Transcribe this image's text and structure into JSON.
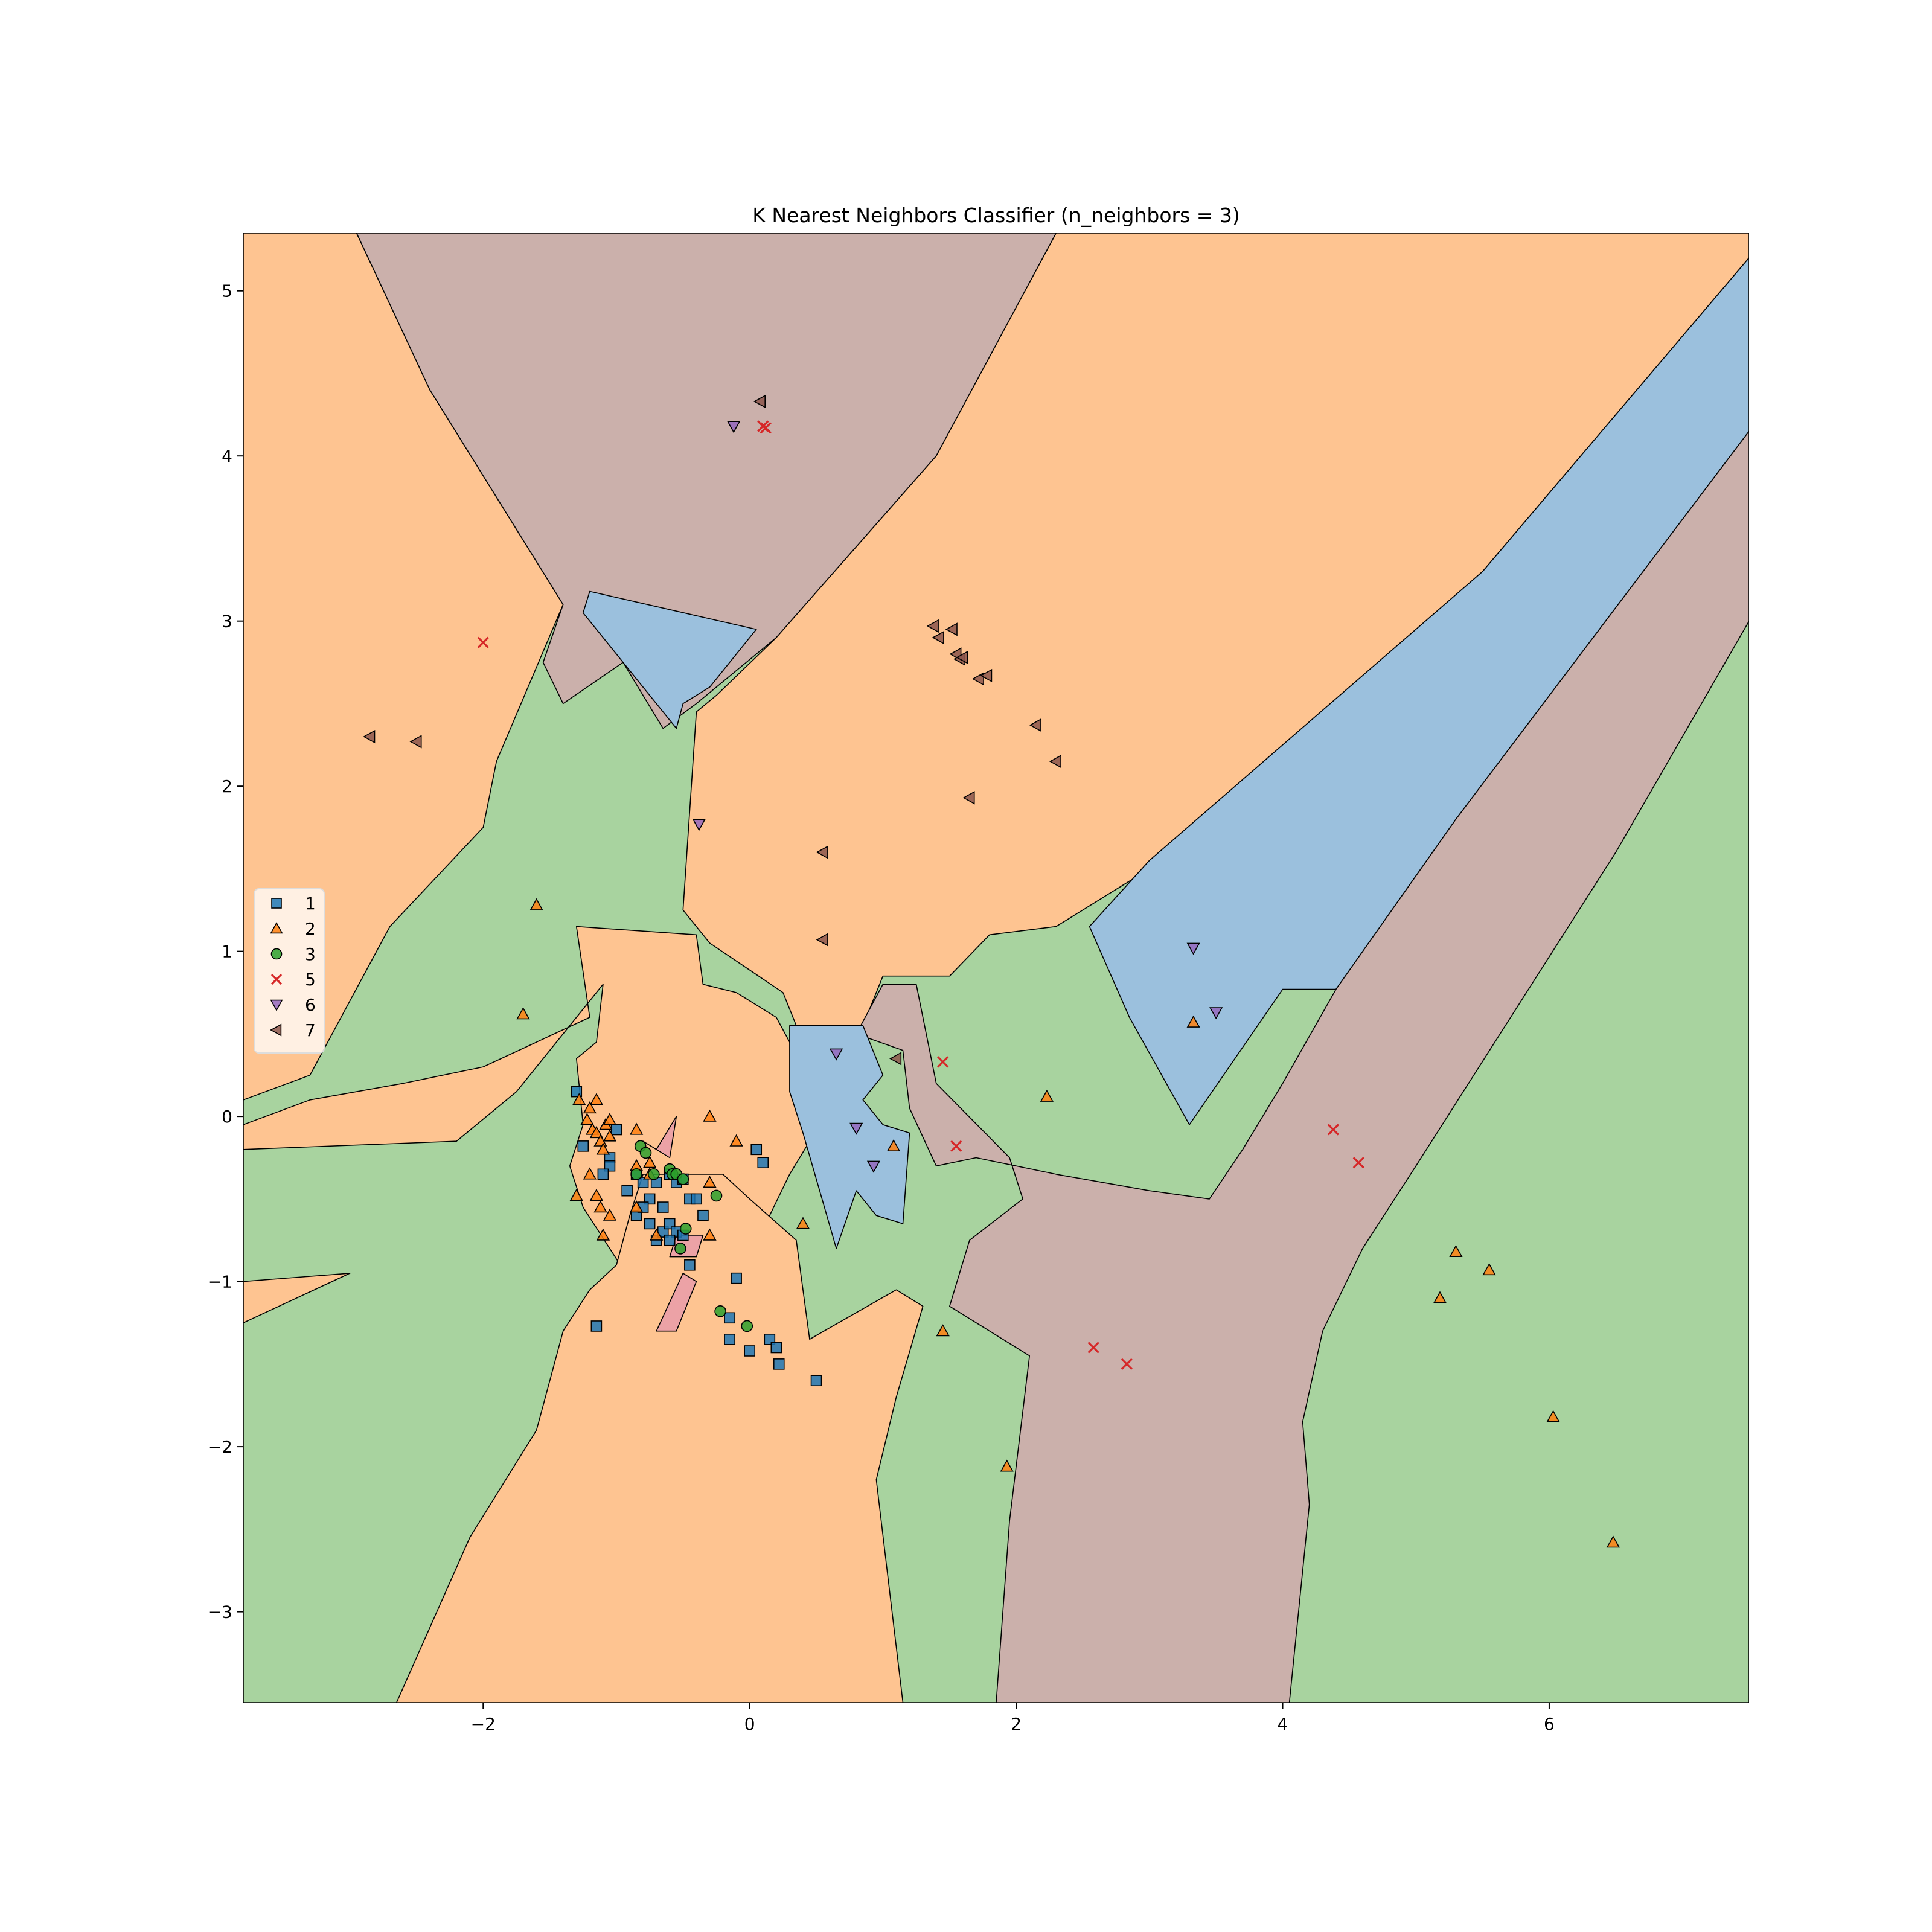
{
  "chart_data": {
    "type": "scatter",
    "title": "K Nearest Neighbors Classifier (n_neighbors = 3)",
    "xlabel": "",
    "ylabel": "",
    "xlim": [
      -3.8,
      7.5
    ],
    "ylim": [
      -3.55,
      5.35
    ],
    "x_ticks": [
      -2,
      0,
      2,
      4,
      6
    ],
    "y_ticks": [
      -3,
      -2,
      -1,
      0,
      1,
      2,
      3,
      4,
      5
    ],
    "legend_position": "center-left",
    "region_colors": {
      "1": "#9bc0dd",
      "2": "#fec491",
      "3": "#a8d39f",
      "5": "#eca2a6",
      "7": "#cbb0ab"
    },
    "decision_regions": [
      {
        "class": "3",
        "points": [
          [
            -3.8,
            -3.55
          ],
          [
            7.5,
            -3.55
          ],
          [
            7.5,
            5.35
          ],
          [
            -3.8,
            5.35
          ]
        ]
      },
      {
        "class": "2",
        "points": [
          [
            -3.8,
            5.35
          ],
          [
            -2.95,
            5.35
          ],
          [
            -2.4,
            4.4
          ],
          [
            -1.4,
            3.1
          ],
          [
            -1.9,
            2.15
          ],
          [
            -2.0,
            1.75
          ],
          [
            -2.7,
            1.15
          ],
          [
            -3.3,
            0.25
          ],
          [
            -3.8,
            0.1
          ]
        ]
      },
      {
        "class": "7",
        "points": [
          [
            -2.95,
            5.35
          ],
          [
            2.3,
            5.35
          ],
          [
            1.4,
            4.0
          ],
          [
            0.2,
            2.9
          ],
          [
            -0.4,
            2.5
          ],
          [
            -0.65,
            2.35
          ],
          [
            -0.95,
            2.75
          ],
          [
            -1.4,
            2.5
          ],
          [
            -1.55,
            2.75
          ],
          [
            -1.4,
            3.1
          ],
          [
            -2.4,
            4.4
          ]
        ]
      },
      {
        "class": "1",
        "points": [
          [
            -1.2,
            3.18
          ],
          [
            0.05,
            2.95
          ],
          [
            -0.3,
            2.6
          ],
          [
            -0.5,
            2.5
          ],
          [
            -0.55,
            2.35
          ],
          [
            -0.8,
            2.6
          ],
          [
            -1.0,
            2.8
          ],
          [
            -1.25,
            3.05
          ]
        ]
      },
      {
        "class": "2",
        "points": [
          [
            2.3,
            5.35
          ],
          [
            7.5,
            5.35
          ],
          [
            7.5,
            5.2
          ],
          [
            5.5,
            3.3
          ],
          [
            3.0,
            1.5
          ],
          [
            2.3,
            1.15
          ],
          [
            1.8,
            1.1
          ],
          [
            1.5,
            0.85
          ],
          [
            1.0,
            0.85
          ],
          [
            0.85,
            0.55
          ],
          [
            0.35,
            0.55
          ],
          [
            0.25,
            0.75
          ],
          [
            -0.3,
            1.05
          ],
          [
            -0.5,
            1.25
          ],
          [
            -0.4,
            2.45
          ],
          [
            -0.25,
            2.55
          ],
          [
            0.2,
            2.9
          ],
          [
            1.4,
            4.0
          ]
        ]
      },
      {
        "class": "1",
        "points": [
          [
            7.5,
            5.2
          ],
          [
            7.5,
            4.15
          ],
          [
            5.3,
            1.8
          ],
          [
            4.4,
            0.77
          ],
          [
            4.0,
            0.77
          ],
          [
            3.3,
            -0.05
          ],
          [
            2.85,
            0.6
          ],
          [
            2.55,
            1.15
          ],
          [
            3.0,
            1.55
          ],
          [
            5.5,
            3.3
          ]
        ]
      },
      {
        "class": "7",
        "points": [
          [
            7.5,
            4.15
          ],
          [
            7.5,
            3.0
          ],
          [
            6.5,
            1.6
          ],
          [
            5.0,
            -0.3
          ],
          [
            4.6,
            -0.8
          ],
          [
            4.3,
            -1.3
          ],
          [
            4.15,
            -1.85
          ],
          [
            4.2,
            -2.35
          ],
          [
            4.05,
            -3.55
          ],
          [
            1.85,
            -3.55
          ],
          [
            1.95,
            -2.45
          ],
          [
            2.1,
            -1.45
          ],
          [
            1.5,
            -1.15
          ],
          [
            1.65,
            -0.75
          ],
          [
            2.05,
            -0.5
          ],
          [
            1.95,
            -0.25
          ],
          [
            1.4,
            0.2
          ],
          [
            1.25,
            0.8
          ],
          [
            1.0,
            0.8
          ],
          [
            0.8,
            0.5
          ],
          [
            1.15,
            0.4
          ],
          [
            1.2,
            0.05
          ],
          [
            1.4,
            -0.3
          ],
          [
            1.7,
            -0.25
          ],
          [
            2.3,
            -0.35
          ],
          [
            3.0,
            -0.45
          ],
          [
            3.45,
            -0.5
          ],
          [
            3.7,
            -0.2
          ],
          [
            4.0,
            0.2
          ],
          [
            4.4,
            0.77
          ],
          [
            5.3,
            1.8
          ]
        ]
      },
      {
        "class": "2",
        "points": [
          [
            -3.8,
            -0.2
          ],
          [
            -2.2,
            -0.15
          ],
          [
            -1.75,
            0.15
          ],
          [
            -1.1,
            0.8
          ],
          [
            -1.15,
            0.45
          ],
          [
            -1.3,
            0.35
          ],
          [
            -1.25,
            -0.05
          ],
          [
            -1.35,
            -0.3
          ],
          [
            -1.25,
            -0.55
          ],
          [
            -1.05,
            -0.8
          ],
          [
            -0.85,
            -1.05
          ],
          [
            -0.7,
            -1.5
          ],
          [
            -0.4,
            -1.2
          ],
          [
            -0.2,
            -0.8
          ],
          [
            0.15,
            -0.6
          ],
          [
            0.3,
            -0.35
          ],
          [
            0.45,
            -0.15
          ],
          [
            0.55,
            0.25
          ],
          [
            0.3,
            0.45
          ],
          [
            0.2,
            0.6
          ],
          [
            -0.1,
            0.75
          ],
          [
            -0.35,
            0.8
          ],
          [
            -0.4,
            1.1
          ],
          [
            -1.3,
            1.15
          ],
          [
            -1.2,
            0.6
          ],
          [
            -1.6,
            0.45
          ],
          [
            -2.0,
            0.3
          ],
          [
            -2.6,
            0.2
          ],
          [
            -3.3,
            0.1
          ],
          [
            -3.8,
            -0.05
          ]
        ]
      },
      {
        "class": "2",
        "points": [
          [
            -3.8,
            -1.25
          ],
          [
            -3.0,
            -0.95
          ],
          [
            -3.8,
            -1.0
          ]
        ]
      },
      {
        "class": "2",
        "points": [
          [
            -2.65,
            -3.55
          ],
          [
            1.15,
            -3.55
          ],
          [
            0.95,
            -2.2
          ],
          [
            1.1,
            -1.7
          ],
          [
            1.3,
            -1.15
          ],
          [
            1.1,
            -1.05
          ],
          [
            0.45,
            -1.35
          ],
          [
            0.35,
            -0.75
          ],
          [
            0.0,
            -0.5
          ],
          [
            -0.2,
            -0.35
          ],
          [
            -0.5,
            -0.35
          ],
          [
            -0.8,
            -0.35
          ],
          [
            -0.9,
            -0.6
          ],
          [
            -1.0,
            -0.9
          ],
          [
            -1.2,
            -1.05
          ],
          [
            -1.4,
            -1.3
          ],
          [
            -1.6,
            -1.9
          ],
          [
            -2.1,
            -2.55
          ]
        ]
      },
      {
        "class": "1",
        "points": [
          [
            0.3,
            0.55
          ],
          [
            0.85,
            0.55
          ],
          [
            1.0,
            0.25
          ],
          [
            0.85,
            0.1
          ],
          [
            1.0,
            -0.05
          ],
          [
            1.2,
            -0.1
          ],
          [
            1.15,
            -0.65
          ],
          [
            0.95,
            -0.6
          ],
          [
            0.8,
            -0.45
          ],
          [
            0.65,
            -0.8
          ],
          [
            0.4,
            -0.1
          ],
          [
            0.3,
            0.15
          ]
        ]
      },
      {
        "class": "5",
        "points": [
          [
            -0.7,
            -0.2
          ],
          [
            -0.55,
            0.0
          ],
          [
            -0.6,
            -0.25
          ],
          [
            -0.8,
            -0.15
          ]
        ]
      },
      {
        "class": "5",
        "points": [
          [
            -0.7,
            -1.3
          ],
          [
            -0.5,
            -0.95
          ],
          [
            -0.4,
            -1.0
          ],
          [
            -0.55,
            -1.3
          ]
        ]
      },
      {
        "class": "5",
        "points": [
          [
            -0.55,
            -0.72
          ],
          [
            -0.35,
            -0.72
          ],
          [
            -0.4,
            -0.85
          ],
          [
            -0.6,
            -0.85
          ]
        ]
      }
    ],
    "legend": [
      "1",
      "2",
      "3",
      "5",
      "6",
      "7"
    ],
    "series": [
      {
        "name": "1",
        "marker": "square",
        "color": "#1f77b4",
        "points": [
          [
            -1.3,
            0.15
          ],
          [
            -1.25,
            -0.18
          ],
          [
            -1.05,
            -0.25
          ],
          [
            -1.0,
            -0.08
          ],
          [
            -1.05,
            -0.3
          ],
          [
            -1.1,
            -0.35
          ],
          [
            -0.92,
            -0.45
          ],
          [
            -0.85,
            -0.35
          ],
          [
            -0.8,
            -0.4
          ],
          [
            -0.75,
            -0.5
          ],
          [
            -0.7,
            -0.4
          ],
          [
            -0.65,
            -0.55
          ],
          [
            -0.6,
            -0.35
          ],
          [
            -0.55,
            -0.4
          ],
          [
            -0.5,
            -0.38
          ],
          [
            -0.45,
            -0.5
          ],
          [
            -0.85,
            -0.6
          ],
          [
            -0.8,
            -0.55
          ],
          [
            -0.75,
            -0.65
          ],
          [
            -0.7,
            -0.75
          ],
          [
            -0.65,
            -0.7
          ],
          [
            -0.6,
            -0.65
          ],
          [
            -0.55,
            -0.7
          ],
          [
            -0.5,
            -0.72
          ],
          [
            -0.6,
            -0.75
          ],
          [
            -0.4,
            -0.5
          ],
          [
            -0.35,
            -0.6
          ],
          [
            -0.45,
            -0.9
          ],
          [
            -0.1,
            -0.98
          ],
          [
            0.05,
            -0.2
          ],
          [
            0.1,
            -0.28
          ],
          [
            -0.15,
            -1.22
          ],
          [
            -0.15,
            -1.35
          ],
          [
            0.0,
            -1.42
          ],
          [
            0.15,
            -1.35
          ],
          [
            0.2,
            -1.4
          ],
          [
            0.22,
            -1.5
          ],
          [
            0.5,
            -1.6
          ],
          [
            -1.15,
            -1.27
          ]
        ]
      },
      {
        "name": "2",
        "marker": "triangle-up",
        "color": "#ff7f0e",
        "points": [
          [
            -1.28,
            0.1
          ],
          [
            -1.2,
            0.05
          ],
          [
            -1.22,
            -0.02
          ],
          [
            -1.18,
            -0.08
          ],
          [
            -1.15,
            -0.1
          ],
          [
            -1.12,
            -0.15
          ],
          [
            -1.08,
            -0.05
          ],
          [
            -1.05,
            -0.12
          ],
          [
            -1.1,
            -0.2
          ],
          [
            -1.15,
            0.1
          ],
          [
            -1.2,
            -0.35
          ],
          [
            -1.3,
            -0.48
          ],
          [
            -1.15,
            -0.48
          ],
          [
            -1.12,
            -0.55
          ],
          [
            -1.05,
            -0.6
          ],
          [
            -1.1,
            -0.72
          ],
          [
            -1.05,
            -0.02
          ],
          [
            -0.85,
            -0.3
          ],
          [
            -0.85,
            -0.55
          ],
          [
            -0.75,
            -0.35
          ],
          [
            -0.85,
            -0.08
          ],
          [
            -0.75,
            -0.28
          ],
          [
            -0.7,
            -0.72
          ],
          [
            -0.3,
            -0.4
          ],
          [
            -0.3,
            -0.72
          ],
          [
            -0.3,
            0.0
          ],
          [
            -0.1,
            -0.15
          ],
          [
            0.4,
            -0.65
          ],
          [
            1.08,
            -0.18
          ],
          [
            1.45,
            -1.3
          ],
          [
            1.93,
            -2.12
          ],
          [
            2.23,
            0.12
          ],
          [
            3.33,
            0.57
          ],
          [
            -1.6,
            1.28
          ],
          [
            -1.7,
            0.62
          ],
          [
            5.3,
            -0.82
          ],
          [
            5.55,
            -0.93
          ],
          [
            5.18,
            -1.1
          ],
          [
            6.03,
            -1.82
          ],
          [
            6.48,
            -2.58
          ]
        ]
      },
      {
        "name": "3",
        "marker": "circle",
        "color": "#2ca02c",
        "points": [
          [
            -0.85,
            -0.35
          ],
          [
            -0.82,
            -0.18
          ],
          [
            -0.78,
            -0.22
          ],
          [
            -0.72,
            -0.35
          ],
          [
            -0.6,
            -0.32
          ],
          [
            -0.58,
            -0.35
          ],
          [
            -0.55,
            -0.35
          ],
          [
            -0.5,
            -0.38
          ],
          [
            -0.25,
            -0.48
          ],
          [
            -0.48,
            -0.68
          ],
          [
            -0.52,
            -0.8
          ],
          [
            -0.22,
            -1.18
          ],
          [
            -0.02,
            -1.27
          ]
        ]
      },
      {
        "name": "5",
        "marker": "x",
        "color": "#d62728",
        "points": [
          [
            -2.0,
            2.87
          ],
          [
            0.1,
            4.18
          ],
          [
            0.12,
            4.17
          ],
          [
            1.45,
            0.33
          ],
          [
            1.55,
            -0.18
          ],
          [
            2.58,
            -1.4
          ],
          [
            2.83,
            -1.5
          ],
          [
            4.38,
            -0.08
          ],
          [
            4.57,
            -0.28
          ]
        ]
      },
      {
        "name": "6",
        "marker": "triangle-down",
        "color": "#9467bd",
        "points": [
          [
            -0.12,
            4.18
          ],
          [
            -0.38,
            1.77
          ],
          [
            0.65,
            0.38
          ],
          [
            0.8,
            -0.07
          ],
          [
            0.93,
            -0.3
          ],
          [
            3.33,
            1.02
          ],
          [
            3.5,
            0.63
          ]
        ]
      },
      {
        "name": "7",
        "marker": "triangle-left",
        "color": "#8c564b",
        "points": [
          [
            -2.85,
            2.3
          ],
          [
            -2.5,
            2.27
          ],
          [
            0.08,
            4.33
          ],
          [
            1.38,
            2.97
          ],
          [
            1.42,
            2.9
          ],
          [
            1.52,
            2.95
          ],
          [
            1.55,
            2.8
          ],
          [
            1.58,
            2.77
          ],
          [
            1.6,
            2.78
          ],
          [
            1.72,
            2.65
          ],
          [
            1.78,
            2.67
          ],
          [
            2.15,
            2.37
          ],
          [
            2.3,
            2.15
          ],
          [
            1.65,
            1.93
          ],
          [
            0.55,
            1.6
          ],
          [
            0.55,
            1.07
          ],
          [
            1.1,
            0.35
          ]
        ]
      }
    ]
  }
}
